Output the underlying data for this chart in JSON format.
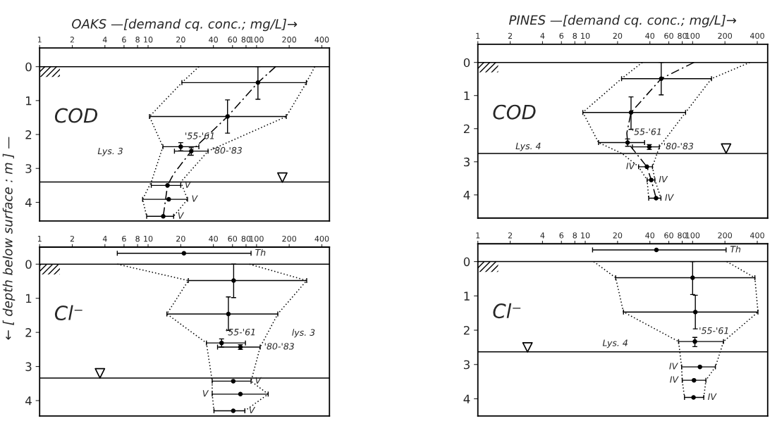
{
  "chart_data": [
    {
      "type": "scatter",
      "title": "OAKS —[demand cq. conc.; mg/L]→",
      "ylabel": "← [ depth below surface : m ] —",
      "log": "x",
      "xlim": [
        1,
        470
      ],
      "xticks": [
        1,
        2,
        4,
        6,
        8,
        10,
        20,
        40,
        60,
        80,
        100,
        200,
        400
      ],
      "ylim": [
        4.55,
        -0.55
      ],
      "yticks": [
        0,
        1,
        2,
        3,
        4
      ],
      "series": [
        {
          "marker": "circle",
          "color": "#000000",
          "x": [
            103,
            54,
            20,
            25,
            15.1,
            15.5,
            13.8
          ],
          "values": [
            0.47,
            1.47,
            2.36,
            2.49,
            3.5,
            3.91,
            4.41
          ],
          "xerrors": [
            [
              20.5,
              288
            ],
            [
              10.3,
              188
            ],
            [
              13.7,
              29.4
            ],
            [
              17.5,
              35.7
            ],
            [
              10.7,
              20
            ],
            [
              8.9,
              23.1
            ],
            [
              9.7,
              17.2
            ]
          ],
          "errors": [
            [
              0,
              0.96
            ],
            [
              0.98,
              1.96
            ],
            [
              2.24,
              2.48
            ],
            [
              2.39,
              2.61
            ],
            null,
            null,
            null
          ]
        },
        {
          "type": "line",
          "line_style": "dotted",
          "color": "#000000",
          "x": [
            29.4,
            20.5,
            10.3,
            13.7,
            10.7,
            8.9,
            9.7
          ],
          "values": [
            0,
            0.47,
            1.47,
            2.36,
            3.4,
            3.91,
            4.41
          ]
        },
        {
          "type": "line",
          "line_style": "dotted",
          "color": "#000000",
          "x": [
            344,
            288,
            188,
            35.7,
            20,
            23.1,
            17.2
          ],
          "values": [
            0,
            0.47,
            1.47,
            2.49,
            3.4,
            3.91,
            4.41
          ]
        },
        {
          "type": "line",
          "line_style": "dashed",
          "color": "#000000",
          "x": [
            150,
            103,
            54,
            25,
            17.2,
            15.1,
            13.8
          ],
          "values": [
            0,
            0.47,
            1.47,
            2.49,
            3.16,
            3.5,
            4.41
          ]
        },
        {
          "marker": "triangle",
          "color": "#000000",
          "x": [
            173
          ],
          "values": [
            3.27
          ]
        }
      ],
      "ref_lines": [
        {
          "axis": "y",
          "value": 0,
          "color": "#000000"
        },
        {
          "axis": "y",
          "value": 3.4,
          "color": "#000000"
        }
      ],
      "annotations": [
        "COD",
        "Lys. 3",
        {
          "text": "'55-'61",
          "x": 20,
          "y": 2.36
        },
        {
          "text": "'80-'83",
          "x": 35.7,
          "y": 2.49
        },
        {
          "text": "V",
          "x": 20,
          "y": 3.5
        },
        {
          "text": "V",
          "x": 23.1,
          "y": 3.91
        },
        {
          "text": "V",
          "x": 17.2,
          "y": 4.41
        }
      ]
    },
    {
      "type": "scatter",
      "log": "x",
      "xlim": [
        1,
        470
      ],
      "xticks": [
        1,
        2,
        4,
        6,
        8,
        10,
        20,
        40,
        60,
        80,
        100,
        200,
        400
      ],
      "ylim": [
        4.45,
        -0.5
      ],
      "yticks": [
        0,
        1,
        2,
        3,
        4
      ],
      "series": [
        {
          "marker": "circle",
          "color": "#000000",
          "x": [
            21.4,
            61.5,
            55,
            47.6,
            71,
            61,
            71,
            61
          ],
          "values": [
            -0.32,
            0.48,
            1.46,
            2.31,
            2.43,
            3.43,
            3.81,
            4.3
          ],
          "xerrors": [
            [
              5.2,
              89
            ],
            [
              23.5,
              290
            ],
            [
              14.9,
              157
            ],
            [
              34.5,
              79
            ],
            [
              43.7,
              108
            ],
            [
              39,
              89
            ],
            [
              39,
              128
            ],
            [
              40.5,
              78
            ]
          ],
          "errors": [
            null,
            [
              0,
              0.98
            ],
            [
              0.96,
              1.94
            ],
            [
              2.19,
              2.43
            ],
            [
              2.36,
              2.5
            ],
            null,
            null,
            null
          ]
        },
        {
          "type": "line",
          "line_style": "dotted",
          "color": "#000000",
          "x": [
            5.2,
            23.5,
            14.9,
            34.5,
            39,
            39,
            40.5
          ],
          "values": [
            0,
            0.48,
            1.46,
            2.31,
            3.43,
            3.81,
            4.3
          ]
        },
        {
          "type": "line",
          "line_style": "dotted",
          "color": "#000000",
          "x": [
            86,
            290,
            157,
            108,
            89,
            128,
            78
          ],
          "values": [
            0,
            0.48,
            1.46,
            2.43,
            3.43,
            3.81,
            4.3
          ]
        },
        {
          "marker": "triangle",
          "color": "#000000",
          "x": [
            3.6
          ],
          "values": [
            3.2
          ]
        }
      ],
      "ref_lines": [
        {
          "axis": "y",
          "value": 0,
          "color": "#000000"
        },
        {
          "axis": "y",
          "value": 3.34,
          "color": "#000000"
        }
      ],
      "annotations": [
        "Cl⁻",
        "lys. 3",
        {
          "text": "Th",
          "x": 89,
          "y": -0.32
        },
        {
          "text": "'55-'61",
          "x": 47.6,
          "y": 2.31
        },
        {
          "text": "'80-'83",
          "x": 108,
          "y": 2.43
        },
        {
          "text": "V",
          "x": 89,
          "y": 3.43
        },
        {
          "text": "V",
          "x": 39,
          "y": 3.81
        },
        {
          "text": "V",
          "x": 78,
          "y": 4.3
        }
      ]
    },
    {
      "type": "scatter",
      "title": "PINES —[demand cq. conc.; mg/L]→",
      "log": "x",
      "xlim": [
        1,
        500
      ],
      "xticks": [
        1,
        2,
        4,
        6,
        8,
        10,
        20,
        40,
        60,
        80,
        100,
        200,
        400
      ],
      "ylim": [
        4.7,
        -0.55
      ],
      "yticks": [
        0,
        1,
        2,
        3,
        4
      ],
      "series": [
        {
          "marker": "circle",
          "color": "#000000",
          "x": [
            51,
            26.7,
            24.8,
            39.5,
            37.5,
            41.2,
            45.7
          ],
          "values": [
            0.49,
            1.51,
            2.42,
            2.55,
            3.15,
            3.55,
            4.1
          ],
          "xerrors": [
            [
              21.8,
              150
            ],
            [
              9.5,
              86
            ],
            [
              13.3,
              35.7
            ],
            [
              27.5,
              49
            ],
            [
              31.4,
              42.3
            ],
            [
              37.7,
              44.5
            ],
            [
              39,
              50.7
            ]
          ],
          "errors": [
            [
              0,
              0.98
            ],
            [
              1.04,
              2.02
            ],
            [
              2.31,
              2.53
            ],
            [
              2.48,
              2.63
            ],
            null,
            null,
            null
          ]
        },
        {
          "type": "line",
          "line_style": "dotted",
          "color": "#000000",
          "x": [
            34,
            21.8,
            9.5,
            13.3,
            22,
            31.4,
            37.7,
            39
          ],
          "values": [
            0,
            0.49,
            1.51,
            2.42,
            2.75,
            3.15,
            3.55,
            4.1
          ]
        },
        {
          "type": "line",
          "line_style": "dotted",
          "color": "#000000",
          "x": [
            341,
            150,
            86,
            49,
            42.3,
            44.5,
            50.7
          ],
          "values": [
            0,
            0.49,
            1.51,
            2.55,
            3.15,
            3.55,
            4.1
          ]
        },
        {
          "type": "line",
          "line_style": "dashed",
          "color": "#000000",
          "x": [
            103,
            51,
            26.7,
            24.4,
            24.8,
            37.5,
            41.2,
            45.7
          ],
          "values": [
            0,
            0.49,
            1.51,
            2.13,
            2.42,
            3.15,
            3.55,
            4.1
          ]
        },
        {
          "marker": "triangle",
          "color": "#000000",
          "x": [
            205
          ],
          "values": [
            2.6
          ]
        }
      ],
      "ref_lines": [
        {
          "axis": "y",
          "value": 0,
          "color": "#000000"
        },
        {
          "axis": "y",
          "value": 2.75,
          "color": "#000000"
        }
      ],
      "annotations": [
        "COD",
        "Lys. 4",
        {
          "text": "'55-'61",
          "x": 24.8,
          "y": 2.42
        },
        {
          "text": "'80-'83",
          "x": 49,
          "y": 2.55
        },
        {
          "text": "IV",
          "x": 31.4,
          "y": 3.15
        },
        {
          "text": "IV",
          "x": 44.5,
          "y": 3.55
        },
        {
          "text": "IV",
          "x": 50.7,
          "y": 4.1
        }
      ]
    },
    {
      "type": "scatter",
      "log": "x",
      "xlim": [
        1,
        500
      ],
      "xticks": [
        1,
        2,
        4,
        6,
        8,
        10,
        20,
        40,
        60,
        80,
        100,
        200,
        400
      ],
      "ylim": [
        4.5,
        -0.52
      ],
      "yticks": [
        0,
        1,
        2,
        3,
        4
      ],
      "series": [
        {
          "marker": "circle",
          "color": "#000000",
          "x": [
            46,
            100,
            106,
            105,
            117,
            103,
            102
          ],
          "values": [
            -0.34,
            0.47,
            1.47,
            2.33,
            3.07,
            3.46,
            3.96
          ],
          "xerrors": [
            [
              11.7,
              205
            ],
            [
              19.2,
              380
            ],
            [
              22.7,
              406
            ],
            [
              74,
              194
            ],
            [
              79,
              163
            ],
            [
              80,
              133
            ],
            [
              84,
              127
            ]
          ],
          "errors": [
            null,
            [
              0,
              0.96
            ],
            [
              0.98,
              1.96
            ],
            [
              2.21,
              2.48
            ],
            null,
            null,
            null
          ]
        },
        {
          "type": "line",
          "line_style": "dotted",
          "color": "#000000",
          "x": [
            12,
            19.2,
            22.7,
            74,
            79,
            80,
            84
          ],
          "values": [
            0,
            0.47,
            1.47,
            2.33,
            3.07,
            3.46,
            3.96
          ]
        },
        {
          "type": "line",
          "line_style": "dotted",
          "color": "#000000",
          "x": [
            208,
            380,
            406,
            194,
            163,
            133,
            127
          ],
          "values": [
            0,
            0.47,
            1.47,
            2.33,
            3.07,
            3.46,
            3.96
          ]
        },
        {
          "marker": "triangle",
          "color": "#000000",
          "x": [
            2.9
          ],
          "values": [
            2.5
          ]
        }
      ],
      "ref_lines": [
        {
          "axis": "y",
          "value": 0,
          "color": "#000000"
        },
        {
          "axis": "y",
          "value": 2.63,
          "color": "#000000"
        }
      ],
      "annotations": [
        "Cl⁻",
        "Lys. 4",
        {
          "text": "Th",
          "x": 205,
          "y": -0.34
        },
        {
          "text": "'55-'61",
          "x": 105,
          "y": 2.33
        },
        {
          "text": "IV",
          "x": 79,
          "y": 3.07
        },
        {
          "text": "IV",
          "x": 80,
          "y": 3.46
        },
        {
          "text": "IV",
          "x": 127,
          "y": 3.96
        }
      ]
    }
  ]
}
